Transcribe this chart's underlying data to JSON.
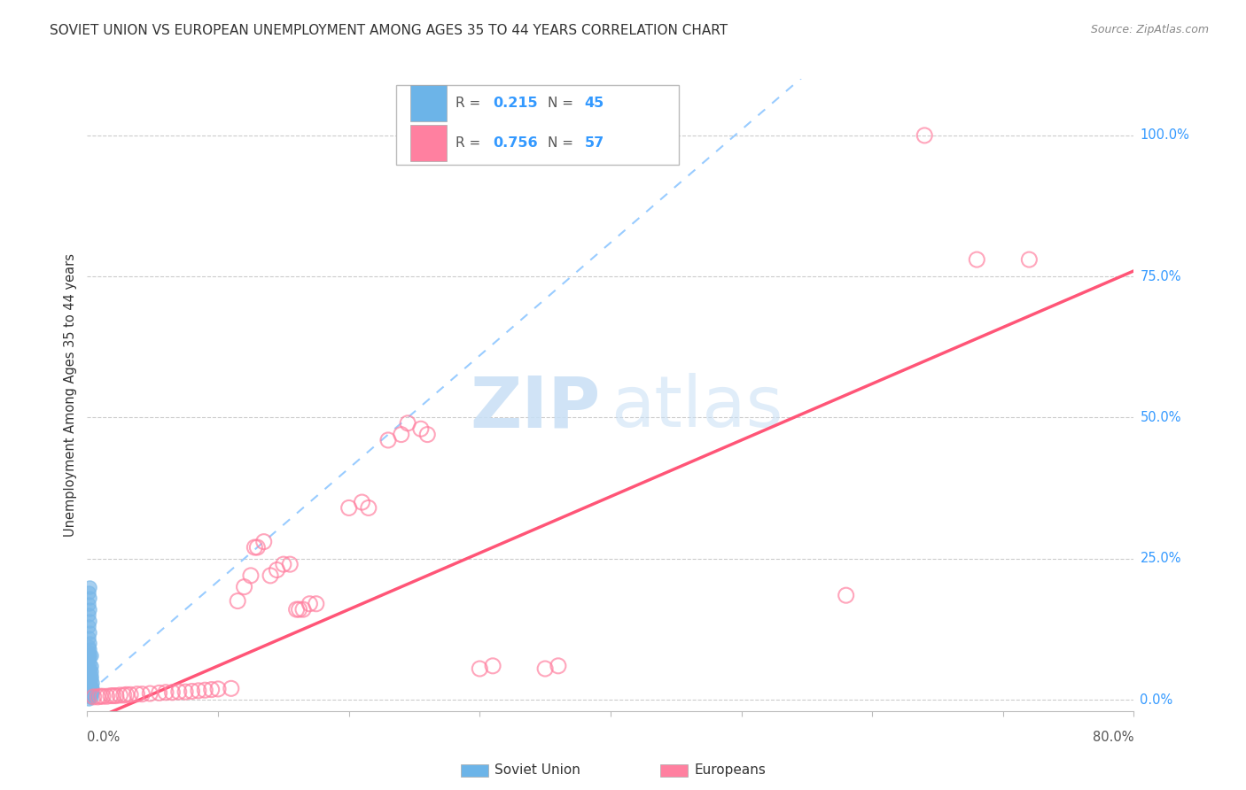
{
  "title": "SOVIET UNION VS EUROPEAN UNEMPLOYMENT AMONG AGES 35 TO 44 YEARS CORRELATION CHART",
  "source": "Source: ZipAtlas.com",
  "ylabel": "Unemployment Among Ages 35 to 44 years",
  "y_ticks": [
    0.0,
    0.25,
    0.5,
    0.75,
    1.0
  ],
  "y_tick_labels": [
    "0.0%",
    "25.0%",
    "50.0%",
    "75.0%",
    "100.0%"
  ],
  "xlim": [
    0.0,
    0.8
  ],
  "ylim": [
    -0.02,
    1.1
  ],
  "legend1_R": "0.215",
  "legend1_N": "45",
  "legend2_R": "0.756",
  "legend2_N": "57",
  "soviet_color": "#6cb4e8",
  "european_color": "#ff80a0",
  "soviet_scatter_color": "#7ab8e8",
  "european_scatter_color": "#ffaabc",
  "soviet_line_color": "#99ccff",
  "european_line_color": "#ff5577",
  "grid_color": "#cccccc",
  "watermark": "ZIPatlas",
  "soviet_points": [
    [
      0.002,
      0.005
    ],
    [
      0.003,
      0.005
    ],
    [
      0.002,
      0.008
    ],
    [
      0.001,
      0.01
    ],
    [
      0.002,
      0.01
    ],
    [
      0.003,
      0.01
    ],
    [
      0.003,
      0.012
    ],
    [
      0.002,
      0.015
    ],
    [
      0.003,
      0.015
    ],
    [
      0.004,
      0.015
    ],
    [
      0.002,
      0.02
    ],
    [
      0.003,
      0.02
    ],
    [
      0.004,
      0.02
    ],
    [
      0.002,
      0.025
    ],
    [
      0.003,
      0.025
    ],
    [
      0.004,
      0.03
    ],
    [
      0.002,
      0.035
    ],
    [
      0.003,
      0.038
    ],
    [
      0.002,
      0.04
    ],
    [
      0.003,
      0.042
    ],
    [
      0.001,
      0.045
    ],
    [
      0.002,
      0.05
    ],
    [
      0.003,
      0.05
    ],
    [
      0.002,
      0.055
    ],
    [
      0.003,
      0.06
    ],
    [
      0.002,
      0.065
    ],
    [
      0.001,
      0.07
    ],
    [
      0.002,
      0.075
    ],
    [
      0.003,
      0.078
    ],
    [
      0.002,
      0.08
    ],
    [
      0.001,
      0.085
    ],
    [
      0.002,
      0.09
    ],
    [
      0.001,
      0.095
    ],
    [
      0.002,
      0.1
    ],
    [
      0.001,
      0.11
    ],
    [
      0.002,
      0.12
    ],
    [
      0.001,
      0.13
    ],
    [
      0.002,
      0.14
    ],
    [
      0.001,
      0.15
    ],
    [
      0.002,
      0.16
    ],
    [
      0.001,
      0.17
    ],
    [
      0.002,
      0.18
    ],
    [
      0.001,
      0.19
    ],
    [
      0.002,
      0.2
    ],
    [
      0.001,
      0.002
    ]
  ],
  "european_points": [
    [
      0.005,
      0.005
    ],
    [
      0.008,
      0.005
    ],
    [
      0.01,
      0.006
    ],
    [
      0.012,
      0.006
    ],
    [
      0.015,
      0.006
    ],
    [
      0.018,
      0.007
    ],
    [
      0.02,
      0.007
    ],
    [
      0.022,
      0.007
    ],
    [
      0.025,
      0.008
    ],
    [
      0.028,
      0.008
    ],
    [
      0.03,
      0.009
    ],
    [
      0.033,
      0.009
    ],
    [
      0.038,
      0.01
    ],
    [
      0.042,
      0.01
    ],
    [
      0.048,
      0.011
    ],
    [
      0.055,
      0.012
    ],
    [
      0.06,
      0.013
    ],
    [
      0.065,
      0.013
    ],
    [
      0.07,
      0.014
    ],
    [
      0.075,
      0.014
    ],
    [
      0.08,
      0.015
    ],
    [
      0.085,
      0.016
    ],
    [
      0.09,
      0.017
    ],
    [
      0.095,
      0.018
    ],
    [
      0.1,
      0.019
    ],
    [
      0.11,
      0.02
    ],
    [
      0.115,
      0.175
    ],
    [
      0.12,
      0.2
    ],
    [
      0.125,
      0.22
    ],
    [
      0.128,
      0.27
    ],
    [
      0.13,
      0.27
    ],
    [
      0.135,
      0.28
    ],
    [
      0.14,
      0.22
    ],
    [
      0.145,
      0.23
    ],
    [
      0.15,
      0.24
    ],
    [
      0.155,
      0.24
    ],
    [
      0.16,
      0.16
    ],
    [
      0.162,
      0.16
    ],
    [
      0.165,
      0.16
    ],
    [
      0.17,
      0.17
    ],
    [
      0.175,
      0.17
    ],
    [
      0.2,
      0.34
    ],
    [
      0.21,
      0.35
    ],
    [
      0.215,
      0.34
    ],
    [
      0.23,
      0.46
    ],
    [
      0.24,
      0.47
    ],
    [
      0.245,
      0.49
    ],
    [
      0.255,
      0.48
    ],
    [
      0.26,
      0.47
    ],
    [
      0.3,
      0.055
    ],
    [
      0.31,
      0.06
    ],
    [
      0.35,
      0.055
    ],
    [
      0.36,
      0.06
    ],
    [
      0.58,
      0.185
    ],
    [
      0.64,
      1.0
    ],
    [
      0.68,
      0.78
    ],
    [
      0.72,
      0.78
    ]
  ]
}
